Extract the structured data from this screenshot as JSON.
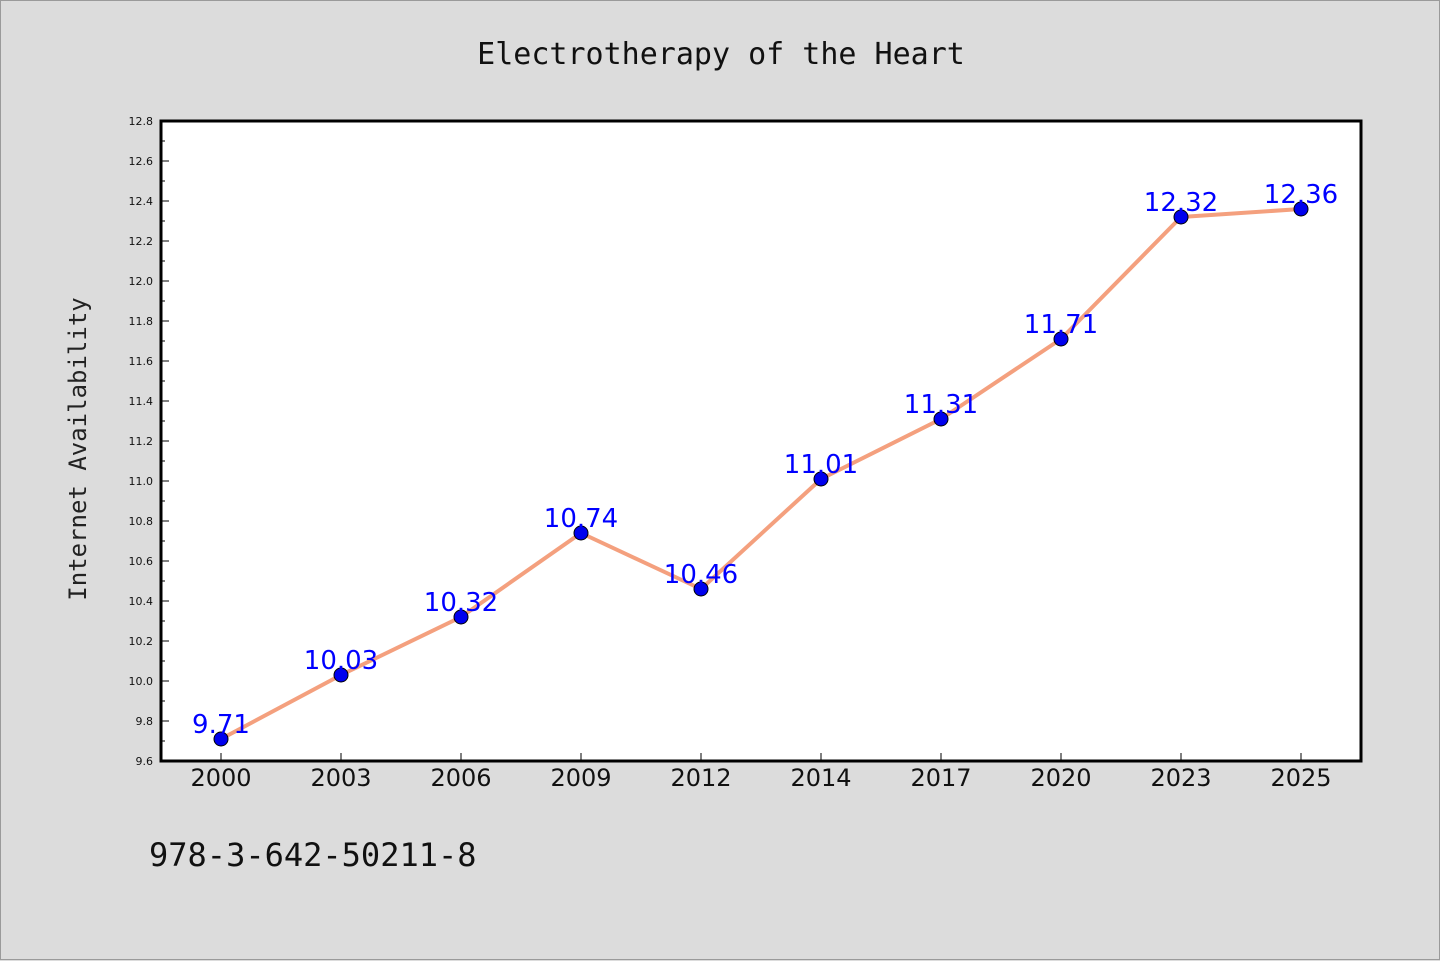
{
  "chart_data": {
    "type": "line",
    "title": "Electrotherapy of the Heart",
    "xlabel": "",
    "ylabel": "Internet Availability",
    "categories": [
      "2000",
      "2003",
      "2006",
      "2009",
      "2012",
      "2014",
      "2017",
      "2020",
      "2023",
      "2025"
    ],
    "values": [
      9.71,
      10.03,
      10.32,
      10.74,
      10.46,
      11.01,
      11.31,
      11.71,
      12.32,
      12.36
    ],
    "data_labels": [
      "9.71",
      "10.03",
      "10.32",
      "10.74",
      "10.46",
      "11.01",
      "11.31",
      "11.71",
      "12.32",
      "12.36"
    ],
    "ylim": [
      9.6,
      12.8
    ],
    "yticks": [
      "9.6",
      "9.8",
      "10.0",
      "10.2",
      "10.4",
      "10.6",
      "10.8",
      "11.0",
      "11.2",
      "11.4",
      "11.6",
      "11.8",
      "12.0",
      "12.2",
      "12.4",
      "12.6",
      "12.8"
    ],
    "grid": false,
    "line_color": "#f4a07e",
    "marker_color": "#0000ee",
    "label_color": "#0000ff",
    "background": "#dcdcdc",
    "plot_background": "#ffffff"
  },
  "footer": {
    "text": "978-3-642-50211-8"
  }
}
